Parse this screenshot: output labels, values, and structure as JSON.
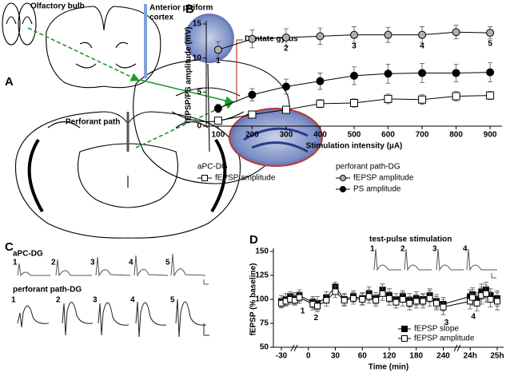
{
  "panels": [
    "A",
    "B",
    "C",
    "D"
  ],
  "panel_a": {
    "labels": [
      "Olfactory bulb",
      [
        "Anterior piriform",
        "cortex"
      ],
      "Dentate gyrus",
      "Perforant path"
    ]
  },
  "panel_c": {
    "rows": [
      {
        "name": "aPC-DG",
        "numbers": [
          "1",
          "2",
          "3",
          "4",
          "5"
        ]
      },
      {
        "name": "perforant path-DG",
        "numbers": [
          "1",
          "2",
          "3",
          "4",
          "5"
        ]
      }
    ]
  },
  "chart_data": [
    {
      "type": "line",
      "y_label": "fEPSP/PS amplitude (mV)",
      "x_label": "Stimulation intensity (µA)",
      "x": [
        100,
        200,
        300,
        400,
        500,
        600,
        700,
        800,
        900
      ],
      "xlim": [
        65,
        935
      ],
      "xticks": [
        100,
        200,
        300,
        400,
        500,
        600,
        700,
        800,
        900
      ],
      "ylim": [
        0,
        15
      ],
      "yticks": [
        0,
        5,
        10,
        15
      ],
      "legend_groups": [
        "aPC-DG",
        "perforant path-DG"
      ],
      "series": [
        {
          "name": "fEPSP amplitude",
          "group": 0,
          "marker": "square",
          "color": "#ffffff",
          "values": [
            0.8,
            1.7,
            2.4,
            3.3,
            3.4,
            4.0,
            3.9,
            4.4,
            4.5
          ],
          "errors": [
            0.4,
            0.5,
            0.5,
            0.6,
            0.6,
            0.7,
            0.7,
            0.7,
            0.6
          ]
        },
        {
          "name": "fEPSP amplitude",
          "group": 1,
          "marker": "circle",
          "color": "#b0b0b0",
          "values": [
            11.2,
            12.8,
            13.0,
            13.2,
            13.4,
            13.4,
            13.4,
            13.8,
            13.7
          ],
          "errors": [
            1.2,
            1.3,
            1.3,
            1.2,
            1.2,
            1.1,
            1.2,
            1.0,
            0.9
          ]
        },
        {
          "name": "PS amplitude",
          "group": 1,
          "marker": "circle",
          "color": "#000000",
          "values": [
            2.6,
            4.6,
            5.8,
            6.6,
            7.4,
            7.7,
            7.8,
            7.8,
            7.9
          ],
          "errors": [
            0.6,
            0.9,
            1.1,
            1.2,
            1.3,
            1.4,
            1.4,
            1.3,
            1.4
          ]
        }
      ],
      "annotations": [
        {
          "text": "1",
          "x": 100
        },
        {
          "text": "2",
          "x": 300
        },
        {
          "text": "3",
          "x": 500
        },
        {
          "text": "4",
          "x": 700
        },
        {
          "text": "5",
          "x": 900
        }
      ]
    },
    {
      "type": "line",
      "y_label": "fEPSP (% baseline)",
      "x_label": "Time (min)",
      "x": [
        -30,
        -25,
        -20,
        -15,
        -10,
        5,
        10,
        20,
        30,
        40,
        50,
        60,
        75,
        90,
        105,
        120,
        135,
        150,
        165,
        180,
        195,
        210,
        225,
        240,
        1435,
        1445,
        1455,
        1465,
        1475,
        1485,
        1500
      ],
      "xticks": [
        -30,
        0,
        30,
        60,
        120,
        180,
        240,
        {
          "value": 1440,
          "label": "24h"
        },
        {
          "value": 1500,
          "label": "25h"
        }
      ],
      "ylim": [
        50,
        150
      ],
      "yticks": [
        50,
        75,
        100,
        125,
        150
      ],
      "legend": "lower right",
      "series": [
        {
          "name": "fEPSP slope",
          "marker": "square",
          "color": "#000000",
          "values": [
            98,
            100,
            103,
            101,
            104,
            97,
            96,
            102,
            113,
            100,
            103,
            101,
            106,
            101,
            110,
            104,
            100,
            103,
            99,
            101,
            100,
            104,
            98,
            95,
            103,
            105,
            100,
            108,
            110,
            104,
            101
          ],
          "errors": [
            6,
            6,
            5,
            6,
            6,
            6,
            7,
            6,
            5,
            6,
            6,
            6,
            7,
            6,
            6,
            7,
            6,
            6,
            7,
            7,
            6,
            7,
            7,
            7,
            7,
            7,
            7,
            8,
            8,
            7,
            8
          ]
        },
        {
          "name": "fEPSP amplitude",
          "marker": "square",
          "color": "#ffffff",
          "values": [
            96,
            98,
            100,
            99,
            102,
            95,
            93,
            99,
            108,
            99,
            101,
            100,
            103,
            99,
            106,
            101,
            97,
            100,
            96,
            98,
            98,
            101,
            96,
            92,
            98,
            102,
            96,
            104,
            106,
            100,
            98
          ],
          "errors": [
            5,
            5,
            5,
            5,
            6,
            6,
            6,
            6,
            6,
            6,
            6,
            6,
            7,
            6,
            7,
            7,
            6,
            7,
            7,
            7,
            7,
            8,
            7,
            8,
            8,
            8,
            8,
            9,
            9,
            8,
            9
          ]
        }
      ],
      "annotations": [
        {
          "text": "1",
          "x": -10
        },
        {
          "text": "2",
          "x": 5
        },
        {
          "text": "3",
          "x": 240
        },
        {
          "text": "4",
          "x": 1435
        }
      ],
      "inset": {
        "title": "test-pulse stimulation",
        "labels": [
          "1",
          "2",
          "3",
          "4"
        ]
      }
    }
  ]
}
